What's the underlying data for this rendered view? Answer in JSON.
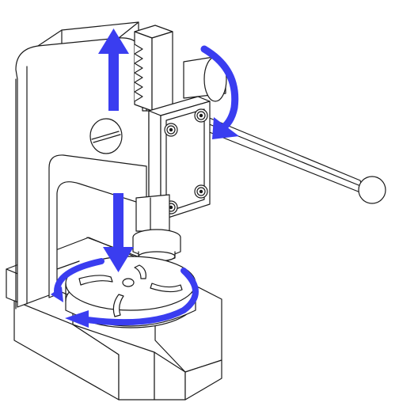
{
  "diagram": {
    "colors": {
      "line": "#1a1a1a",
      "arrow": "#3a3df0",
      "background": "#ffffff"
    },
    "parts": [
      "frame",
      "base",
      "rack",
      "pinion-housing",
      "lever-handle",
      "ram",
      "die-plate",
      "socket-screws"
    ],
    "arrows": [
      "ram-up-arrow",
      "ram-down-arrow",
      "lever-rotation-arrow",
      "die-plate-rotation-arrow"
    ]
  }
}
